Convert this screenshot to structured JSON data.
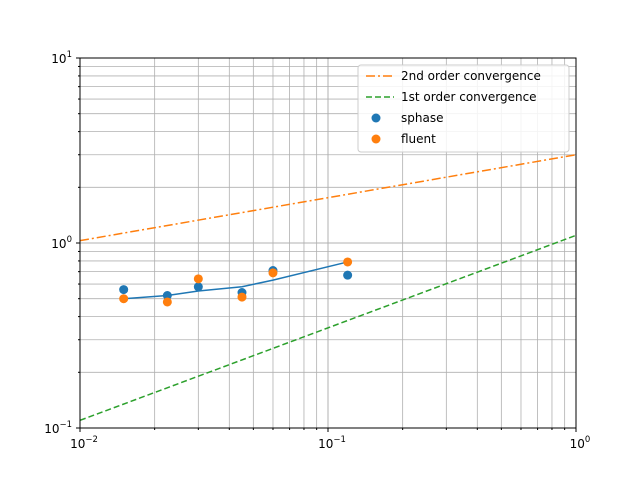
{
  "chart_data": {
    "type": "scatter",
    "title": "",
    "xlabel": "",
    "ylabel": "",
    "xscale": "log",
    "yscale": "log",
    "xlim": [
      0.01,
      1
    ],
    "ylim": [
      0.1,
      10
    ],
    "grid": "major and minor",
    "legend_position": "top-right",
    "x_ticks": [
      {
        "base": "10",
        "exp": "−2"
      },
      {
        "base": "10",
        "exp": "−1"
      },
      {
        "base": "10",
        "exp": "0"
      }
    ],
    "y_ticks": [
      {
        "base": "10",
        "exp": "−1"
      },
      {
        "base": "10",
        "exp": "0"
      },
      {
        "base": "10",
        "exp": "1"
      }
    ],
    "lines": [
      {
        "name": "2nd order convergence",
        "color": "#ff7f0e",
        "style": "dashdot",
        "x": [
          0.01,
          1
        ],
        "y": [
          1.03,
          3.0
        ]
      },
      {
        "name": "1st order convergence",
        "color": "#2ca02c",
        "style": "dashed",
        "x": [
          0.01,
          1
        ],
        "y": [
          0.11,
          1.1
        ]
      },
      {
        "name": "",
        "color": "#1f77b4",
        "style": "solid",
        "x": [
          0.015,
          0.0225,
          0.03,
          0.045,
          0.06,
          0.12
        ],
        "y": [
          0.5,
          0.52,
          0.55,
          0.58,
          0.63,
          0.79
        ]
      }
    ],
    "series": [
      {
        "name": "sphase",
        "color": "#1f77b4",
        "x": [
          0.015,
          0.0225,
          0.03,
          0.045,
          0.06,
          0.12
        ],
        "y": [
          0.56,
          0.52,
          0.58,
          0.54,
          0.71,
          0.67
        ]
      },
      {
        "name": "fluent",
        "color": "#ff7f0e",
        "x": [
          0.015,
          0.0225,
          0.03,
          0.045,
          0.06,
          0.12
        ],
        "y": [
          0.5,
          0.48,
          0.64,
          0.51,
          0.69,
          0.79
        ]
      }
    ]
  }
}
